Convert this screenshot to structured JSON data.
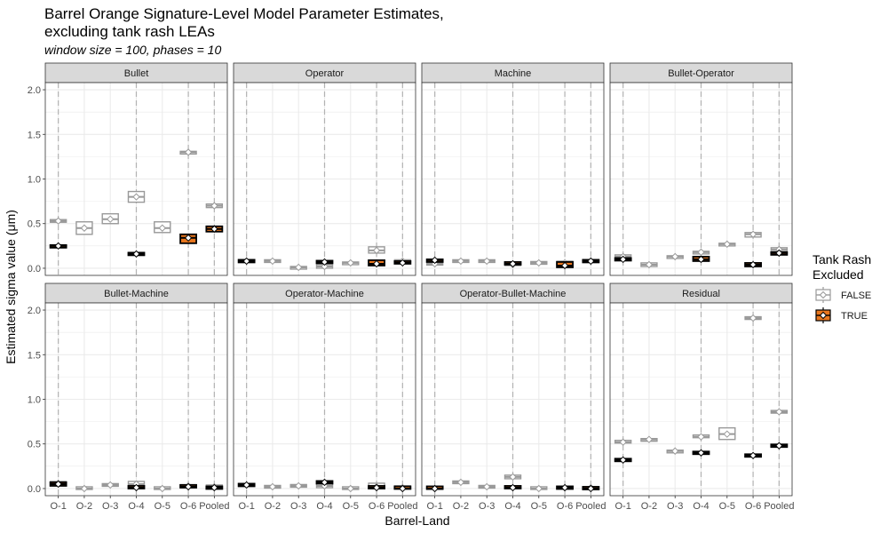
{
  "chart_data": {
    "type": "boxplot",
    "title_line1": "Barrel Orange Signature-Level Model Parameter Estimates,",
    "title_line2": "excluding tank rash LEAs",
    "subtitle": "window size = 100, phases = 10",
    "xlabel": "Barrel-Land",
    "ylabel": "Estimated sigma value (μm)",
    "ylim": [
      -0.08,
      2.08
    ],
    "yticks": [
      0.0,
      0.5,
      1.0,
      1.5,
      2.0
    ],
    "ytick_labels": [
      "0.0",
      "0.5",
      "1.0",
      "1.5",
      "2.0"
    ],
    "categories": [
      "O-1",
      "O-2",
      "O-3",
      "O-4",
      "O-5",
      "O-6",
      "Pooled"
    ],
    "dashed_categories": [
      "O-1",
      "O-4",
      "O-6",
      "Pooled"
    ],
    "legend": {
      "title_line1": "Tank Rash",
      "title_line2": "Excluded",
      "items": [
        {
          "label": "FALSE",
          "color": "#999999",
          "fill": "#ffffff"
        },
        {
          "label": "TRUE",
          "color": "#000000",
          "fill": "#e8761e"
        }
      ]
    },
    "colors": {
      "false_line": "#999999",
      "false_fill": "#ffffff",
      "true_line": "#000000",
      "true_fill": "#e8761e",
      "strip_bg": "#d9d9d9",
      "grid": "#ebebeb",
      "dash": "#b3b3b3"
    },
    "panels": [
      {
        "name": "Bullet",
        "false": [
          [
            0.52,
            0.53,
            0.54
          ],
          [
            0.38,
            0.45,
            0.52
          ],
          [
            0.5,
            0.55,
            0.61
          ],
          [
            0.74,
            0.8,
            0.86
          ],
          [
            0.4,
            0.45,
            0.52
          ],
          [
            1.28,
            1.3,
            1.31
          ],
          [
            0.68,
            0.7,
            0.72
          ]
        ],
        "true": [
          [
            0.23,
            0.25,
            0.26
          ],
          null,
          null,
          [
            0.15,
            0.16,
            0.17
          ],
          null,
          [
            0.28,
            0.34,
            0.38
          ],
          [
            0.41,
            0.44,
            0.47
          ]
        ]
      },
      {
        "name": "Operator",
        "false": [
          [
            0.07,
            0.08,
            0.09
          ],
          [
            0.07,
            0.08,
            0.09
          ],
          [
            0.0,
            0.01,
            0.01
          ],
          [
            0.0,
            0.02,
            0.04
          ],
          [
            0.04,
            0.06,
            0.07
          ],
          [
            0.17,
            0.2,
            0.24
          ],
          [
            0.07,
            0.08,
            0.09
          ]
        ],
        "true": [
          [
            0.07,
            0.08,
            0.09
          ],
          null,
          null,
          [
            0.06,
            0.07,
            0.08
          ],
          null,
          [
            0.03,
            0.05,
            0.09
          ],
          [
            0.05,
            0.06,
            0.08
          ]
        ]
      },
      {
        "name": "Machine",
        "false": [
          [
            0.04,
            0.05,
            0.06
          ],
          [
            0.07,
            0.08,
            0.09
          ],
          [
            0.07,
            0.08,
            0.09
          ],
          [
            0.03,
            0.04,
            0.06
          ],
          [
            0.05,
            0.06,
            0.07
          ],
          [
            0.04,
            0.06,
            0.08
          ],
          [
            0.07,
            0.08,
            0.09
          ]
        ],
        "true": [
          [
            0.07,
            0.09,
            0.1
          ],
          null,
          null,
          [
            0.04,
            0.05,
            0.07
          ],
          null,
          [
            0.01,
            0.03,
            0.07
          ],
          [
            0.07,
            0.08,
            0.09
          ]
        ]
      },
      {
        "name": "Bullet-Operator",
        "false": [
          [
            0.12,
            0.13,
            0.15
          ],
          [
            0.02,
            0.04,
            0.06
          ],
          [
            0.11,
            0.13,
            0.14
          ],
          [
            0.16,
            0.18,
            0.19
          ],
          [
            0.25,
            0.27,
            0.28
          ],
          [
            0.35,
            0.38,
            0.4
          ],
          [
            0.19,
            0.21,
            0.23
          ]
        ],
        "true": [
          [
            0.09,
            0.1,
            0.11
          ],
          null,
          null,
          [
            0.08,
            0.1,
            0.13
          ],
          null,
          [
            0.02,
            0.04,
            0.06
          ],
          [
            0.15,
            0.17,
            0.18
          ]
        ]
      },
      {
        "name": "Bullet-Machine",
        "false": [
          [
            0.04,
            0.06,
            0.08
          ],
          [
            0.0,
            0.0,
            0.01
          ],
          [
            0.03,
            0.04,
            0.05
          ],
          [
            0.01,
            0.05,
            0.08
          ],
          [
            0.0,
            0.0,
            0.01
          ],
          [
            0.02,
            0.03,
            0.04
          ],
          [
            0.01,
            0.02,
            0.04
          ]
        ],
        "true": [
          [
            0.03,
            0.05,
            0.07
          ],
          null,
          null,
          [
            0.0,
            0.01,
            0.03
          ],
          null,
          [
            0.01,
            0.02,
            0.04
          ],
          [
            0.0,
            0.01,
            0.02
          ]
        ]
      },
      {
        "name": "Operator-Machine",
        "false": [
          [
            0.03,
            0.04,
            0.05
          ],
          [
            0.01,
            0.02,
            0.03
          ],
          [
            0.02,
            0.03,
            0.04
          ],
          [
            0.01,
            0.03,
            0.05
          ],
          [
            0.0,
            0.0,
            0.01
          ],
          [
            0.0,
            0.02,
            0.06
          ],
          [
            0.0,
            0.01,
            0.03
          ]
        ],
        "true": [
          [
            0.03,
            0.04,
            0.05
          ],
          null,
          null,
          [
            0.06,
            0.07,
            0.08
          ],
          null,
          [
            0.0,
            0.01,
            0.03
          ],
          [
            0.0,
            0.0,
            0.02
          ]
        ]
      },
      {
        "name": "Operator-Bullet-Machine",
        "false": [
          [
            0.0,
            0.0,
            0.01
          ],
          [
            0.06,
            0.07,
            0.08
          ],
          [
            0.01,
            0.02,
            0.03
          ],
          [
            0.11,
            0.13,
            0.15
          ],
          [
            0.0,
            0.0,
            0.01
          ],
          [
            0.0,
            0.01,
            0.02
          ],
          [
            0.0,
            0.01,
            0.01
          ]
        ],
        "true": [
          [
            0.0,
            0.0,
            0.02
          ],
          null,
          null,
          [
            0.0,
            0.01,
            0.03
          ],
          null,
          [
            0.0,
            0.01,
            0.02
          ],
          [
            0.0,
            0.0,
            0.01
          ]
        ]
      },
      {
        "name": "Residual",
        "false": [
          [
            0.51,
            0.52,
            0.54
          ],
          [
            0.53,
            0.55,
            0.56
          ],
          [
            0.4,
            0.42,
            0.43
          ],
          [
            0.57,
            0.58,
            0.6
          ],
          [
            0.55,
            0.61,
            0.68
          ],
          [
            1.9,
            1.91,
            1.92
          ],
          [
            0.85,
            0.86,
            0.87
          ]
        ],
        "true": [
          [
            0.31,
            0.32,
            0.33
          ],
          null,
          null,
          [
            0.39,
            0.4,
            0.41
          ],
          null,
          [
            0.36,
            0.37,
            0.38
          ],
          [
            0.47,
            0.48,
            0.49
          ]
        ]
      }
    ]
  }
}
